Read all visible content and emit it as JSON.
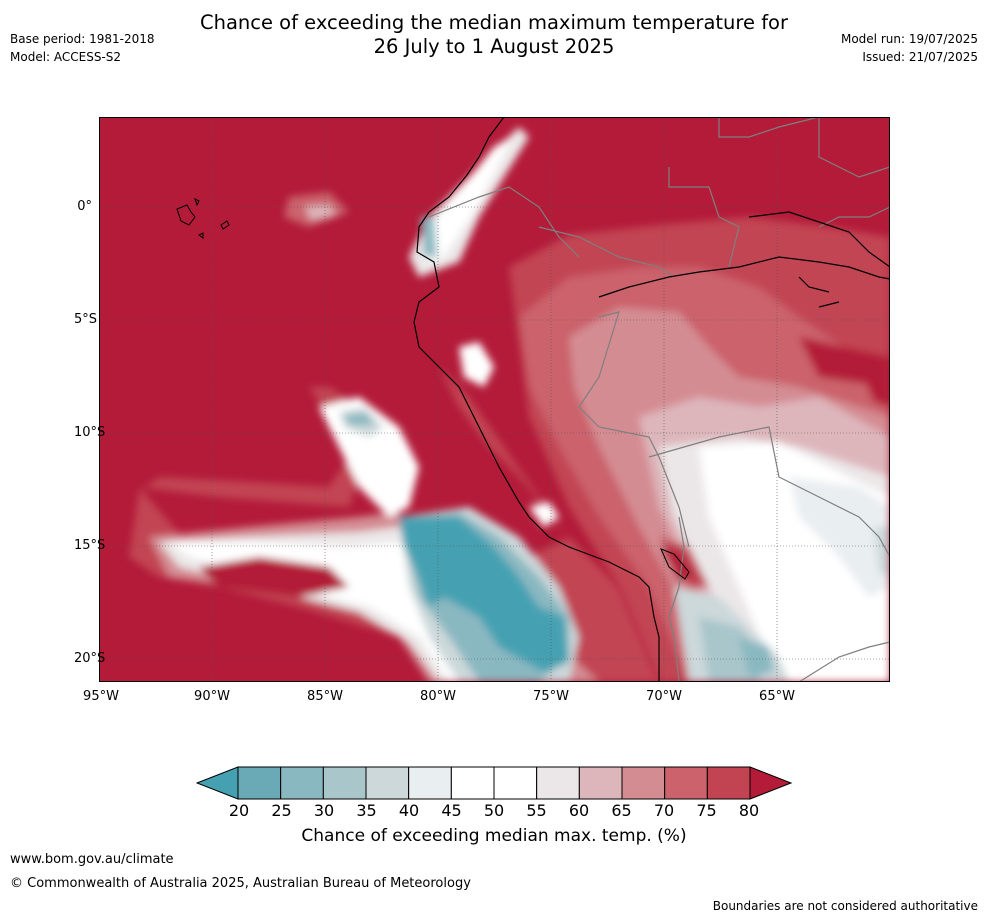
{
  "header": {
    "title_line1": "Chance of exceeding the median maximum temperature for",
    "title_line2": "26 July to 1 August 2025",
    "base_period": "Base period: 1981-2018",
    "model": "Model: ACCESS-S2",
    "model_run": "Model run: 19/07/2025",
    "issued": "Issued: 21/07/2025"
  },
  "map": {
    "lon_range": [
      -95,
      -60
    ],
    "lat_range": [
      -21,
      4
    ],
    "lat_labels": [
      "0°",
      "5°S",
      "10°S",
      "15°S",
      "20°S"
    ],
    "lon_labels": [
      "95°W",
      "90°W",
      "85°W",
      "80°W",
      "75°W",
      "70°W",
      "65°W"
    ],
    "gridlines": "dotted",
    "colors": {
      "above_80": "#b31b39",
      "75_80": "#c24453",
      "70_75": "#cb626c",
      "65_70": "#d48c93",
      "60_65": "#ddb6bb",
      "55_60": "#ebe7e8",
      "45_55": "#ffffff",
      "40_45": "#e9eef0",
      "35_40": "#ccd8da",
      "30_35": "#a9c6cb",
      "25_30": "#8ab8c1",
      "20_25": "#69aab6",
      "below_20": "#45a1b2"
    }
  },
  "colorbar": {
    "ticks": [
      "20",
      "25",
      "30",
      "35",
      "40",
      "45",
      "50",
      "55",
      "60",
      "65",
      "70",
      "75",
      "80"
    ],
    "colors": [
      "#45a1b2",
      "#69aab6",
      "#8ab8c1",
      "#a9c6cb",
      "#ccd8da",
      "#e9eef0",
      "#ffffff",
      "#ffffff",
      "#ebe7e8",
      "#ddb6bb",
      "#d48c93",
      "#cb626c",
      "#c24453",
      "#b31b39"
    ],
    "title": "Chance of exceeding median max. temp. (%)"
  },
  "footer": {
    "website": "www.bom.gov.au/climate",
    "copyright": "© Commonwealth of Australia 2025, Australian Bureau of Meteorology",
    "disclaimer": "Boundaries are not considered authoritative"
  }
}
